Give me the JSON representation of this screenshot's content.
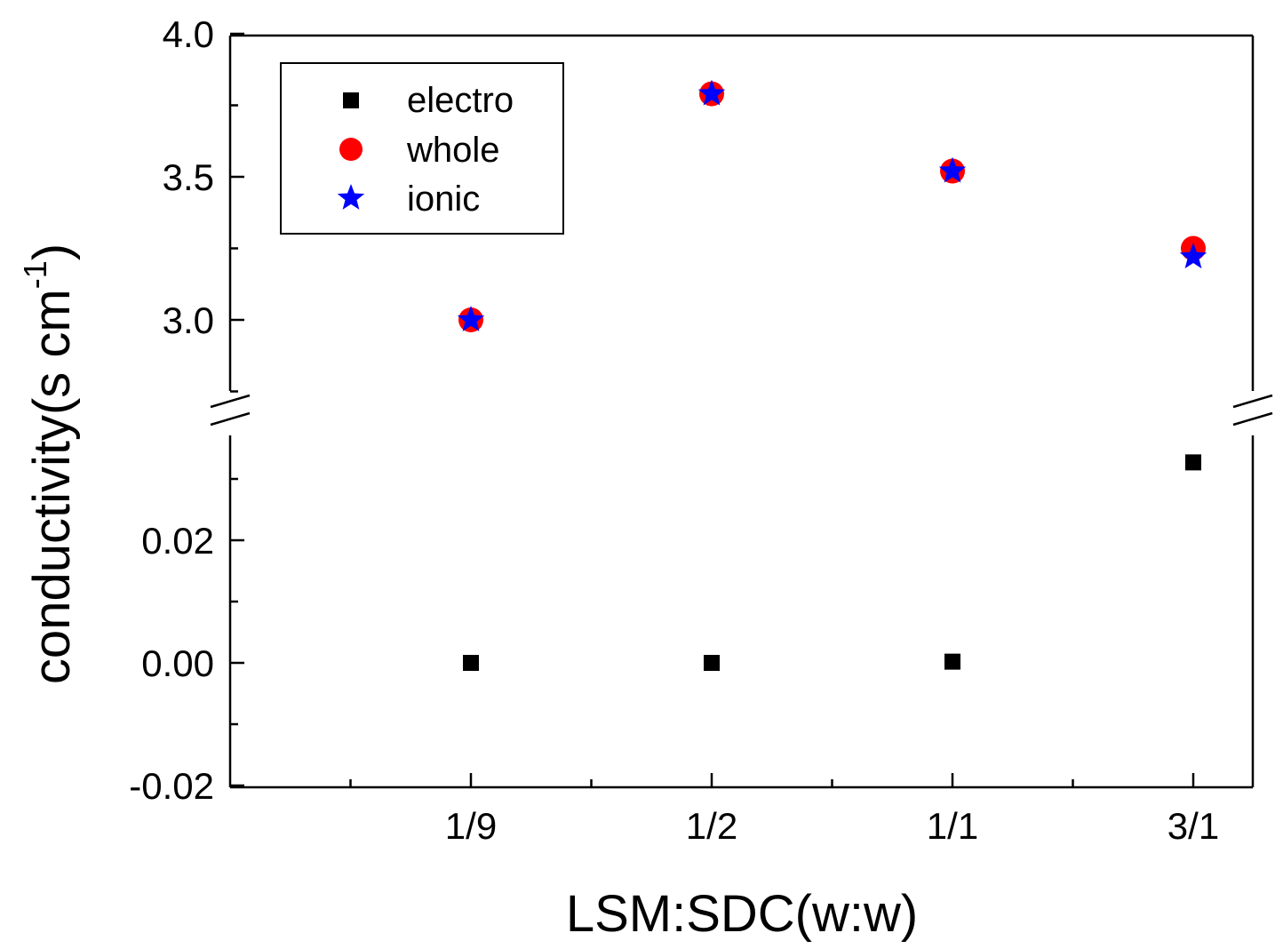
{
  "chart_data": {
    "type": "scatter",
    "categories": [
      "1/9",
      "1/2",
      "1/1",
      "3/1"
    ],
    "xlabel": "LSM:SDC(w:w)",
    "ylabel": {
      "main": "conductivity(s cm",
      "superscript": "-1",
      "close": ")"
    },
    "axis_break": true,
    "upper_ylim": [
      2.75,
      4.0
    ],
    "lower_ylim": [
      -0.02,
      0.037
    ],
    "upper_yticks": [
      "3.0",
      "3.5",
      "4.0"
    ],
    "lower_yticks": [
      "-0.02",
      "0.00",
      "0.02"
    ],
    "legend_position": "top-left",
    "series": [
      {
        "name": "electro",
        "marker": "square",
        "color": "#000000",
        "panel": "lower",
        "values": [
          0.0,
          0.0,
          0.0002,
          0.0327
        ]
      },
      {
        "name": "whole",
        "marker": "circle",
        "color": "#ff0000",
        "panel": "upper",
        "values": [
          3.0,
          3.79,
          3.52,
          3.25
        ]
      },
      {
        "name": "ionic",
        "marker": "star",
        "color": "#0000ff",
        "panel": "upper",
        "values": [
          3.0,
          3.79,
          3.52,
          3.22
        ]
      }
    ]
  }
}
